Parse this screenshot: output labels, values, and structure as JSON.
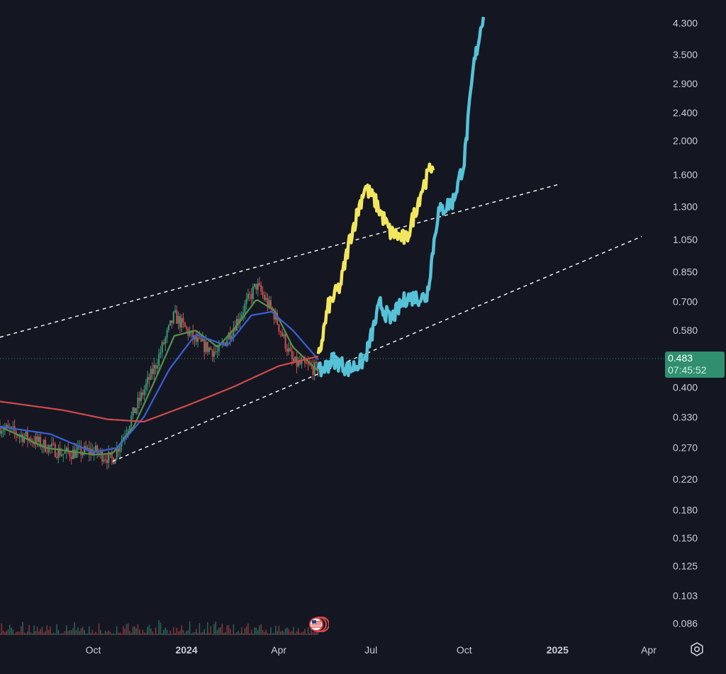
{
  "chart_data": {
    "type": "line",
    "y_scale": "log",
    "ylim": [
      0.08,
      5.0
    ],
    "y_ticks": [
      "4.300",
      "3.500",
      "2.900",
      "2.400",
      "2.000",
      "1.600",
      "1.300",
      "1.050",
      "0.850",
      "0.700",
      "0.580",
      "0.400",
      "0.330",
      "0.270",
      "0.220",
      "0.180",
      "0.150",
      "0.125",
      "0.103",
      "0.086"
    ],
    "x_ticks": [
      "Oct",
      "2024",
      "Apr",
      "Jul",
      "Oct",
      "2025",
      "Apr"
    ],
    "x_tick_dates": [
      "2023-10-01",
      "2024-01-01",
      "2024-04-01",
      "2024-07-01",
      "2024-10-01",
      "2025-01-01",
      "2025-04-01"
    ],
    "xlim": [
      "2023-07-01",
      "2025-04-15"
    ],
    "current_price": "0.483",
    "countdown": "07:45:52",
    "candles_summary": {
      "x": [
        "2023-07-01",
        "2023-08-01",
        "2023-09-01",
        "2023-10-01",
        "2023-10-20",
        "2023-11-10",
        "2023-12-01",
        "2023-12-20",
        "2024-01-10",
        "2024-02-01",
        "2024-02-20",
        "2024-03-10",
        "2024-03-28",
        "2024-04-15",
        "2024-05-10"
      ],
      "close": [
        0.31,
        0.285,
        0.26,
        0.265,
        0.25,
        0.34,
        0.46,
        0.64,
        0.54,
        0.5,
        0.62,
        0.78,
        0.64,
        0.47,
        0.45
      ]
    },
    "series": [
      {
        "color": "#5a8f4a",
        "x": [
          "2023-07-01",
          "2023-08-15",
          "2023-10-01",
          "2023-10-20",
          "2023-11-10",
          "2023-12-01",
          "2023-12-20",
          "2024-01-10",
          "2024-02-01",
          "2024-02-20",
          "2024-03-10",
          "2024-03-28",
          "2024-04-15",
          "2024-05-10"
        ],
        "y": [
          0.31,
          0.27,
          0.258,
          0.26,
          0.31,
          0.42,
          0.56,
          0.58,
          0.52,
          0.6,
          0.71,
          0.66,
          0.52,
          0.445
        ]
      },
      {
        "color": "#3a5fd8",
        "x": [
          "2023-07-01",
          "2023-08-20",
          "2023-10-01",
          "2023-10-25",
          "2023-11-20",
          "2023-12-15",
          "2024-01-10",
          "2024-02-10",
          "2024-03-05",
          "2024-03-25",
          "2024-04-15",
          "2024-05-10"
        ],
        "y": [
          0.31,
          0.295,
          0.262,
          0.27,
          0.33,
          0.45,
          0.565,
          0.525,
          0.64,
          0.655,
          0.58,
          0.48
        ]
      },
      {
        "color": "#d04a4a",
        "x": [
          "2023-07-01",
          "2023-09-01",
          "2023-10-15",
          "2023-11-20",
          "2024-01-01",
          "2024-02-15",
          "2024-04-01",
          "2024-05-10"
        ],
        "y": [
          0.365,
          0.345,
          0.325,
          0.32,
          0.355,
          0.4,
          0.46,
          0.49
        ]
      },
      {
        "color": "#f2e65e",
        "x": [
          "2024-05-10",
          "2024-05-20",
          "2024-06-01",
          "2024-06-10",
          "2024-06-25",
          "2024-07-05",
          "2024-07-20",
          "2024-08-05",
          "2024-08-20",
          "2024-09-01"
        ],
        "y": [
          0.48,
          0.68,
          0.78,
          1.05,
          1.48,
          1.35,
          1.1,
          1.05,
          1.45,
          1.75
        ]
      },
      {
        "color": "#56c2d8",
        "x": [
          "2024-05-10",
          "2024-05-25",
          "2024-06-10",
          "2024-06-25",
          "2024-07-10",
          "2024-07-20",
          "2024-08-05",
          "2024-08-25",
          "2024-09-05",
          "2024-09-20",
          "2024-10-01",
          "2024-10-10",
          "2024-10-20"
        ],
        "y": [
          0.44,
          0.48,
          0.45,
          0.48,
          0.69,
          0.62,
          0.72,
          0.72,
          1.25,
          1.35,
          1.75,
          3.2,
          4.6
        ]
      }
    ],
    "trendlines": [
      {
        "style": "dashed",
        "x": [
          "2023-07-01",
          "2025-01-01"
        ],
        "y": [
          0.555,
          1.5
        ]
      },
      {
        "style": "dashed",
        "x": [
          "2023-10-20",
          "2025-03-25"
        ],
        "y": [
          0.247,
          1.07
        ]
      }
    ],
    "colors": {
      "background": "#141722",
      "axis_text": "#c9ccd6",
      "price_tag": "#2f8f6f",
      "price_line": "#2f8f6f",
      "trendline": "#ffffff",
      "candle_up": "#3a9a7a",
      "candle_down": "#d84a4a"
    }
  },
  "icons": {
    "settings": "gear-icon",
    "event_marker": "us-flag-event-icon"
  }
}
